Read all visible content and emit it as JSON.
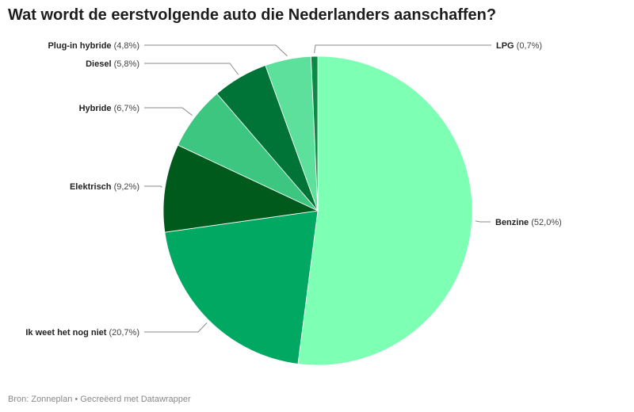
{
  "chart_data": {
    "type": "pie",
    "title": "Wat wordt de eerstvolgende auto die Nederlanders aanschaffen?",
    "slices": [
      {
        "label": "Benzine",
        "value": 52.0,
        "value_label": "(52,0%)",
        "color": "#7dffb4"
      },
      {
        "label": "Ik weet het nog niet",
        "value": 20.7,
        "value_label": "(20,7%)",
        "color": "#00a862"
      },
      {
        "label": "Elektrisch",
        "value": 9.2,
        "value_label": "(9,2%)",
        "color": "#005a1c"
      },
      {
        "label": "Hybride",
        "value": 6.7,
        "value_label": "(6,7%)",
        "color": "#3dc680"
      },
      {
        "label": "Diesel",
        "value": 5.8,
        "value_label": "(5,8%)",
        "color": "#007436"
      },
      {
        "label": "Plug-in hybride",
        "value": 4.8,
        "value_label": "(4,8%)",
        "color": "#5ce09c"
      },
      {
        "label": "LPG",
        "value": 0.7,
        "value_label": "(0,7%)",
        "color": "#0a8a46"
      }
    ]
  },
  "footer": "Bron: Zonneplan • Gecreëerd met Datawrapper"
}
